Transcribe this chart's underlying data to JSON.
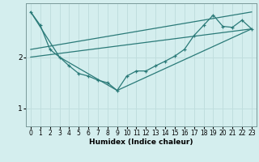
{
  "xlabel": "Humidex (Indice chaleur)",
  "bg_color": "#d4eeee",
  "grid_color": "#c0dede",
  "line_color": "#2a7a78",
  "xlim": [
    -0.5,
    23.5
  ],
  "ylim": [
    0.65,
    3.05
  ],
  "yticks": [
    1,
    2
  ],
  "xticks": [
    0,
    1,
    2,
    3,
    4,
    5,
    6,
    7,
    8,
    9,
    10,
    11,
    12,
    13,
    14,
    15,
    16,
    17,
    18,
    19,
    20,
    21,
    22,
    23
  ],
  "series1_x": [
    0,
    1,
    2,
    3,
    4,
    5,
    6,
    7,
    8,
    9,
    10,
    11,
    12,
    13,
    14,
    15,
    16,
    17,
    18,
    19,
    20,
    21,
    22,
    23
  ],
  "series1_y": [
    2.88,
    2.62,
    2.15,
    2.0,
    1.83,
    1.68,
    1.63,
    1.55,
    1.5,
    1.35,
    1.63,
    1.73,
    1.73,
    1.83,
    1.92,
    2.02,
    2.15,
    2.42,
    2.62,
    2.82,
    2.6,
    2.58,
    2.72,
    2.55
  ],
  "series2_x": [
    0,
    3,
    9,
    23
  ],
  "series2_y": [
    2.88,
    2.0,
    1.35,
    2.55
  ],
  "series3_x": [
    0,
    23
  ],
  "series3_y": [
    2.0,
    2.55
  ],
  "series4_x": [
    0,
    23
  ],
  "series4_y": [
    2.15,
    2.88
  ]
}
